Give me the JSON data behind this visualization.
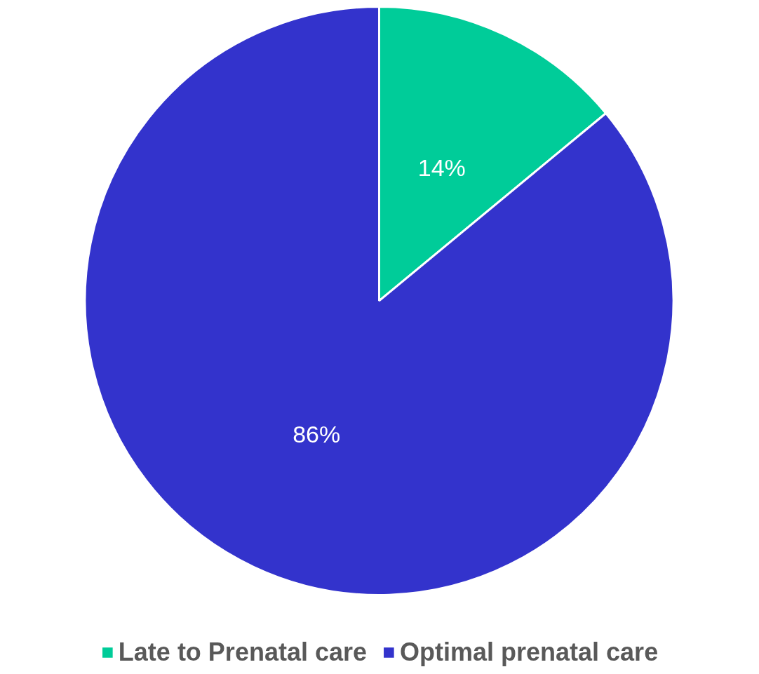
{
  "chart_data": {
    "type": "pie",
    "categories": [
      "Late to Prenatal care",
      "Optimal prenatal care"
    ],
    "values": [
      14,
      86
    ],
    "colors": [
      "#00cc99",
      "#3333cc"
    ],
    "value_labels": [
      "14%",
      "86%"
    ],
    "legend": "bottom"
  }
}
